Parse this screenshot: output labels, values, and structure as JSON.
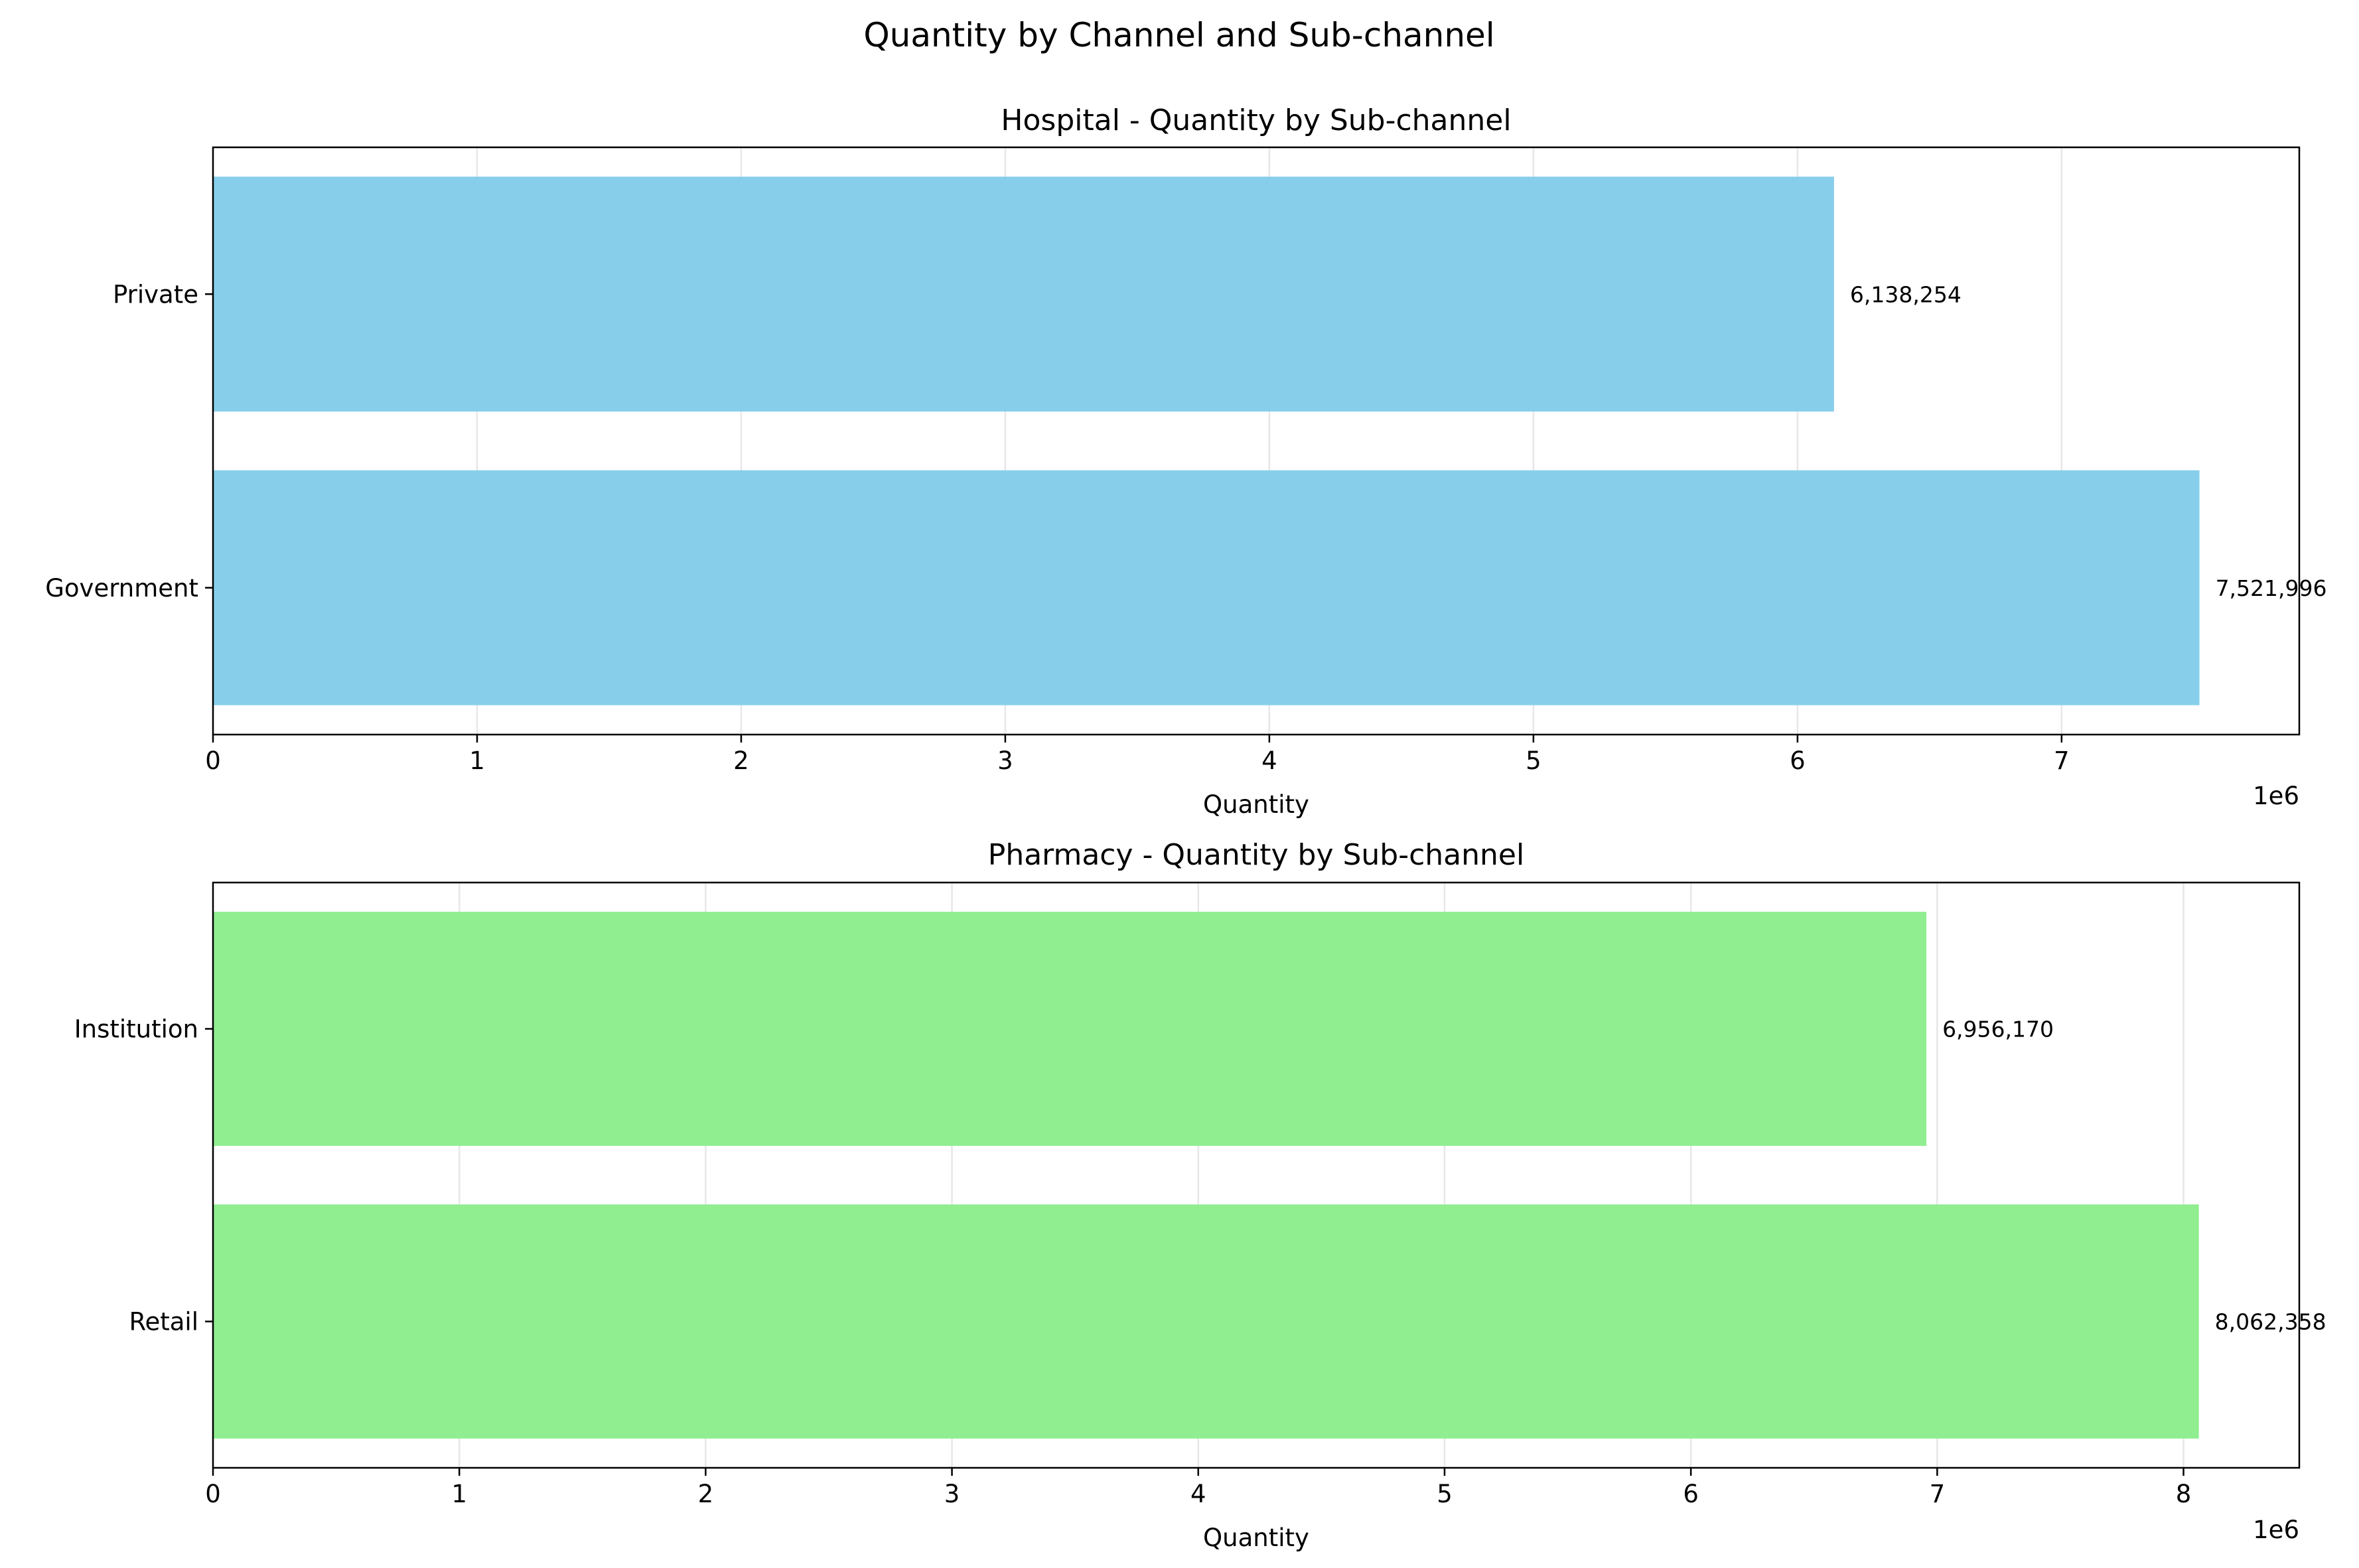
{
  "title": "Quantity by Channel and Sub-channel",
  "chart_data": [
    {
      "type": "bar",
      "orientation": "horizontal",
      "title": "Hospital - Quantity by Sub-channel",
      "categories": [
        "Government",
        "Private"
      ],
      "values": [
        7521996,
        6138254
      ],
      "value_labels": [
        "7,521,996",
        "6,138,254"
      ],
      "xlabel": "Quantity",
      "ylabel": "",
      "xlim": [
        0,
        7900000
      ],
      "xticks": [
        0,
        1,
        2,
        3,
        4,
        5,
        6,
        7
      ],
      "xtick_labels": [
        "0",
        "1",
        "2",
        "3",
        "4",
        "5",
        "6",
        "7"
      ],
      "x_offset_label": "1e6",
      "grid": true,
      "color": "#87CEEB"
    },
    {
      "type": "bar",
      "orientation": "horizontal",
      "title": "Pharmacy - Quantity by Sub-channel",
      "categories": [
        "Retail",
        "Institution"
      ],
      "values": [
        8062358,
        6956170
      ],
      "value_labels": [
        "8,062,358",
        "6,956,170"
      ],
      "xlabel": "Quantity",
      "ylabel": "",
      "xlim": [
        0,
        8470000
      ],
      "xticks": [
        0,
        1,
        2,
        3,
        4,
        5,
        6,
        7,
        8
      ],
      "xtick_labels": [
        "0",
        "1",
        "2",
        "3",
        "4",
        "5",
        "6",
        "7",
        "8"
      ],
      "x_offset_label": "1e6",
      "grid": true,
      "color": "#90EE90"
    }
  ]
}
